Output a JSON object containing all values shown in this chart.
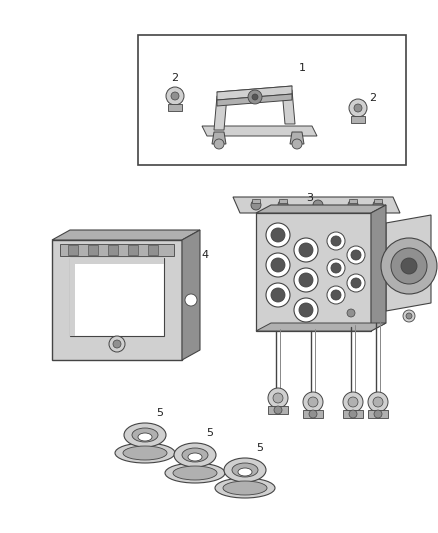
{
  "bg_color": "#ffffff",
  "fig_width": 4.38,
  "fig_height": 5.33,
  "dpi": 100,
  "lc": "#444444",
  "lc2": "#888888",
  "gray1": "#b0b0b0",
  "gray2": "#d0d0d0",
  "gray3": "#909090",
  "dark": "#555555",
  "white": "#ffffff"
}
